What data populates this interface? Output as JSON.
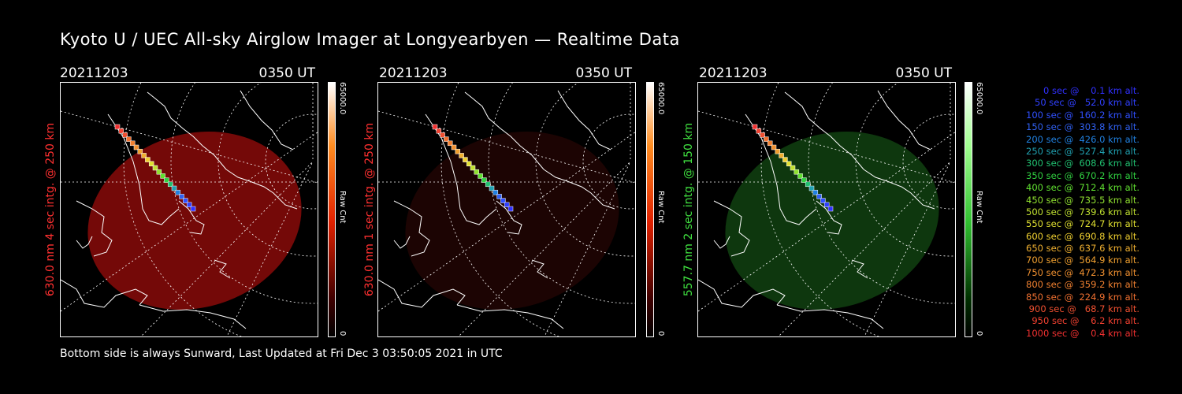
{
  "title": "Kyoto U / UEC All-sky Airglow Imager at Longyearbyen — Realtime Data",
  "footer": "Bottom side is always Sunward, Last Updated at Fri Dec  3 03:50:05 2021 in UTC",
  "panels": [
    {
      "date": "20211203",
      "time": "0350 UT",
      "side_label": "630.0 nm  4 sec intg. @ 250 km",
      "label_color": "#ff3030",
      "fill": "#7a0a08",
      "cbar": "red",
      "cbar_max": "65000.0",
      "cbar_min": "0",
      "cbar_unit": "Raw Cnt"
    },
    {
      "date": "20211203",
      "time": "0350 UT",
      "side_label": "630.0 nm  1 sec intg. @ 250 km",
      "label_color": "#ff3030",
      "fill": "#1e0403",
      "cbar": "red",
      "cbar_max": "65000.0",
      "cbar_min": "0",
      "cbar_unit": "Raw Cnt"
    },
    {
      "date": "20211203",
      "time": "0350 UT",
      "side_label": "557.7 nm  2 sec intg. @ 150 km",
      "label_color": "#40e040",
      "fill": "#0f3a0f",
      "cbar": "green",
      "cbar_max": "65000.0",
      "cbar_min": "0",
      "cbar_unit": "Raw Cnt"
    }
  ],
  "legend": [
    {
      "text": "   0 sec @    0.1 km alt.",
      "color": "#3030ff"
    },
    {
      "text": "  50 sec @   52.0 km alt.",
      "color": "#3040ff"
    },
    {
      "text": " 100 sec @  160.2 km alt.",
      "color": "#3050ff"
    },
    {
      "text": " 150 sec @  303.8 km alt.",
      "color": "#3060f0"
    },
    {
      "text": " 200 sec @  426.0 km alt.",
      "color": "#2080e0"
    },
    {
      "text": " 250 sec @  527.4 km alt.",
      "color": "#20a0b0"
    },
    {
      "text": " 300 sec @  608.6 km alt.",
      "color": "#20c070"
    },
    {
      "text": " 350 sec @  670.2 km alt.",
      "color": "#30d040"
    },
    {
      "text": " 400 sec @  712.4 km alt.",
      "color": "#60e030"
    },
    {
      "text": " 450 sec @  735.5 km alt.",
      "color": "#90e030"
    },
    {
      "text": " 500 sec @  739.6 km alt.",
      "color": "#c0e030"
    },
    {
      "text": " 550 sec @  724.7 km alt.",
      "color": "#e0e030"
    },
    {
      "text": " 600 sec @  690.8 km alt.",
      "color": "#f0d030"
    },
    {
      "text": " 650 sec @  637.6 km alt.",
      "color": "#f0b030"
    },
    {
      "text": " 700 sec @  564.9 km alt.",
      "color": "#f0a030"
    },
    {
      "text": " 750 sec @  472.3 km alt.",
      "color": "#f09030"
    },
    {
      "text": " 800 sec @  359.2 km alt.",
      "color": "#f08030"
    },
    {
      "text": " 850 sec @  224.9 km alt.",
      "color": "#f07030"
    },
    {
      "text": " 900 sec @   68.7 km alt.",
      "color": "#f05030"
    },
    {
      "text": " 950 sec @    6.2 km alt.",
      "color": "#f04030"
    },
    {
      "text": "1000 sec @    0.4 km alt.",
      "color": "#f03030"
    }
  ]
}
